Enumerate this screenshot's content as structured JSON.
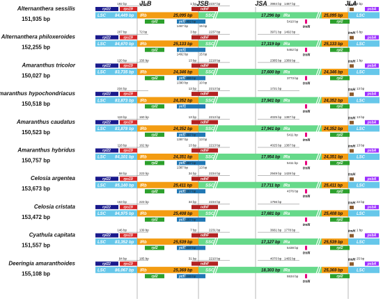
{
  "junctions": [
    "JLB",
    "JSB",
    "JSA",
    "JLA"
  ],
  "region_names": {
    "lsc": "LSC",
    "irb": "IRb",
    "ssc": "SSC",
    "ira": "IRa"
  },
  "colors": {
    "lsc": "#66c7ea",
    "ir": "#f39c12",
    "ssc": "#66d98a",
    "lines": "#888888",
    "rpl22": "#1a1a8c",
    "rps19": "#d62728",
    "rpl2": "#2ca02c",
    "ndhF": "#b22222",
    "ycf1": "#1f77b4",
    "trnH": "#8b5a2b",
    "psbA": "#9b30ff",
    "trnN": "#e6007e"
  },
  "gene_names": {
    "rpl22": "rpl22",
    "rps19": "rps19",
    "rpl2": "rpl2",
    "ndhF": "ndhF",
    "ycf1": "ycf1",
    "trnH": "trnH",
    "psbA": "psbA",
    "trnN": "trnN"
  },
  "species": [
    {
      "name": "Alternanthera sessilis",
      "size": "151,935 bp",
      "lsc": "84,449 bp",
      "ir": "25,095 bp",
      "ssc": "17,296 bp",
      "bp": [
        "192 bp",
        "83 bp",
        "1 bp",
        "2237 bp",
        "3984 bp",
        "1487 bp",
        "5410 bp",
        "1467 bp",
        "15 bp",
        "1492 bp",
        "8 bp"
      ]
    },
    {
      "name": "Alternanthera philoxeroides",
      "size": "152,255 bp",
      "lsc": "84,670 bp",
      "ir": "25,133 bp",
      "ssc": "17,319 bp",
      "bp": [
        "207 bp",
        "72 bp",
        "3 bp",
        "2237 bp",
        "3971 bp",
        "1492 bp",
        "5462 bp",
        "1492 bp",
        "15 bp",
        "",
        "6 bp"
      ]
    },
    {
      "name": "Amaranthus tricolor",
      "size": "150,027 bp",
      "lsc": "83,735 bp",
      "ir": "24,346 bp",
      "ssc": "17,600 bp",
      "bp": [
        "120 bp",
        "156 bp",
        "13 bp",
        "2218 bp",
        "2385 bp",
        "1389 bp",
        "3773 bp",
        "1390 bp",
        "10 bp",
        "1400 bp",
        "1 bp"
      ]
    },
    {
      "name": "Amaranthus hypochondriacus",
      "size": "150,518 bp",
      "lsc": "83,873 bp",
      "ir": "24,352 bp",
      "ssc": "17,941 bp",
      "bp": [
        "234 bp",
        "",
        "13 bp",
        "2213 bp",
        "1721 bp",
        "",
        "",
        "",
        "",
        "",
        "13 bp"
      ]
    },
    {
      "name": "Amaranthus caudatus",
      "size": "150,523 bp",
      "lsc": "83,878 bp",
      "ir": "24,352 bp",
      "ssc": "17,941 bp",
      "bp": [
        "119 bp",
        "160 bp",
        "13 bp",
        "2213 bp",
        "4025 bp",
        "1387 bp",
        "5411 bp",
        "1387 bp",
        "13 bp",
        "1397 bp",
        "13 bp"
      ]
    },
    {
      "name": "Amaranthus hybridus",
      "size": "150,757 bp",
      "lsc": "84,101 bp",
      "ir": "24,351 bp",
      "ssc": "17,954 bp",
      "bp": [
        "118 bp",
        "162 bp",
        "13 bp",
        "2213 bp",
        "4025 bp",
        "1387 bp",
        "5411 bp",
        "1387 bp",
        "13 bp",
        "1397 bp",
        "13 bp"
      ]
    },
    {
      "name": "Celosia argentea",
      "size": "153,673 bp",
      "lsc": "85,140 bp",
      "ir": "25,411 bp",
      "ssc": "17,711 bp",
      "bp": [
        "58 bp",
        "223 bp",
        "34 bp",
        "2234 bp",
        "2949 bp",
        "1428 bp",
        "4376 bp",
        "",
        "",
        "2267 bp",
        ""
      ]
    },
    {
      "name": "Celosia cristata",
      "size": "153,472 bp",
      "lsc": "84,975 bp",
      "ir": "25,408 bp",
      "ssc": "17,681 bp",
      "bp": [
        "163 bp",
        "223 bp",
        "34 bp",
        "2234 bp",
        "1756 bp",
        "",
        "",
        "",
        "",
        "2267 bp",
        "22 bp"
      ]
    },
    {
      "name": "Cyathula capitata",
      "size": "151,557 bp",
      "lsc": "83,352 bp",
      "ir": "25,539 bp",
      "ssc": "17,127 bp",
      "bp": [
        "146 bp",
        "139 bp",
        "7 bp",
        "2231 bp",
        "3661 bp",
        "1778 bp",
        "5438 bp",
        "",
        "",
        "2237 bp",
        "1 bp"
      ]
    },
    {
      "name": "Deeringia amaranthoides",
      "size": "155,108 bp",
      "lsc": "86,067 bp",
      "ir": "25,369 bp",
      "ssc": "18,303 bp",
      "bp": [
        "94 bp",
        "185 bp",
        "31 bp",
        "2210 bp",
        "4070 bp",
        "1465 bp",
        "5534 bp",
        "",
        "",
        "2240 bp",
        "25 bp"
      ]
    }
  ]
}
